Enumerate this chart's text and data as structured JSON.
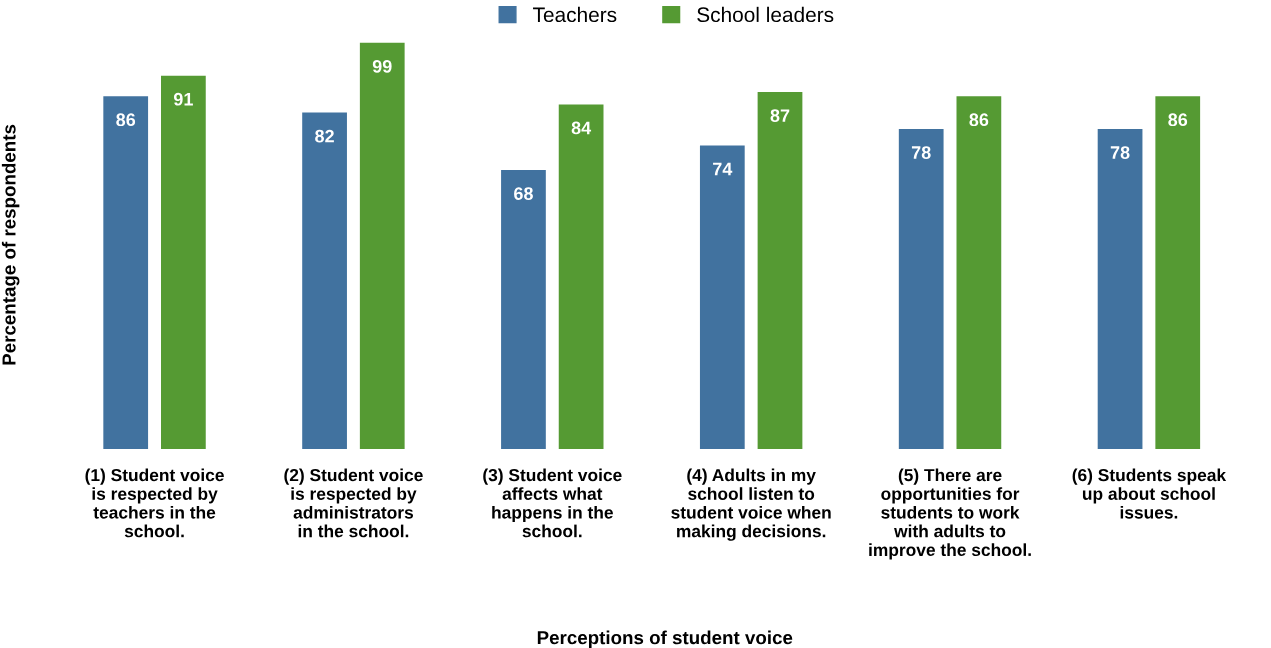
{
  "chart_data": {
    "type": "bar",
    "xlabel": "Perceptions of student voice",
    "ylabel": "Percentage of respondents",
    "categories": [
      "(1) Student voice\nis respected by\nteachers in the\nschool.",
      "(2) Student voice\nis respected by\nadministrators\nin the school.",
      "(3) Student voice\naffects what\nhappens in the\nschool.",
      "(4) Adults in my\nschool listen to\nstudent voice when\nmaking decisions.",
      "(5) There are\nopportunities for\nstudents to work\nwith adults to\nimprove the school.",
      "(6) Students speak\nup about school\nissues."
    ],
    "series": [
      {
        "name": "Teachers",
        "color": "#41729f",
        "values": [
          86,
          82,
          68,
          74,
          78,
          78
        ]
      },
      {
        "name": "School leaders",
        "color": "#559a33",
        "values": [
          91,
          99,
          84,
          87,
          86,
          86
        ]
      }
    ],
    "data_labels": true,
    "grid": false,
    "legend": "top",
    "tick_labels": "x"
  }
}
